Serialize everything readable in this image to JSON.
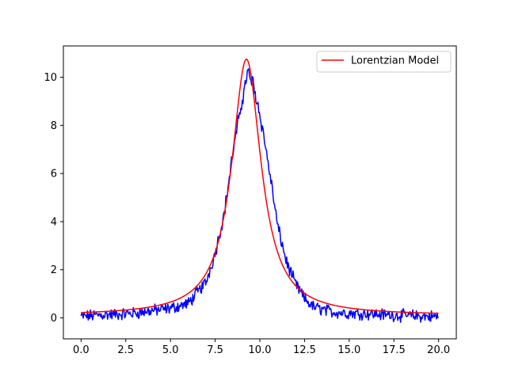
{
  "chart_data": {
    "type": "line",
    "title": "",
    "xlabel": "",
    "ylabel": "",
    "xlim": [
      -0.99,
      20.99
    ],
    "ylim": [
      -0.87,
      11.3
    ],
    "xticks": [
      0.0,
      2.5,
      5.0,
      7.5,
      10.0,
      12.5,
      15.0,
      17.5,
      20.0
    ],
    "xtick_labels": [
      "0.0",
      "2.5",
      "5.0",
      "7.5",
      "10.0",
      "12.5",
      "15.0",
      "17.5",
      "20.0"
    ],
    "yticks": [
      0,
      2,
      4,
      6,
      8,
      10
    ],
    "ytick_labels": [
      "0",
      "2",
      "4",
      "6",
      "8",
      "10"
    ],
    "grid": false,
    "legend_position": "top-right",
    "series": [
      {
        "name": "",
        "color": "#0000ff",
        "x_range": [
          0,
          20
        ],
        "n_points": 500,
        "description": "noisy observed data",
        "x": [
          0,
          1,
          2,
          3,
          4,
          5,
          6,
          7,
          7.5,
          8,
          8.5,
          9,
          9.3,
          9.6,
          10,
          10.5,
          11,
          11.5,
          12,
          12.5,
          13,
          14,
          15,
          16,
          17,
          18,
          19,
          20
        ],
        "values": [
          0.05,
          0.12,
          0.15,
          0.2,
          0.3,
          0.4,
          0.6,
          1.5,
          2.7,
          4.3,
          6.9,
          9.0,
          10.2,
          9.8,
          8.5,
          6.3,
          3.8,
          2.3,
          1.4,
          0.8,
          0.45,
          0.25,
          0.2,
          0.18,
          0.13,
          0.1,
          0.07,
          0.05
        ]
      },
      {
        "name": "Lorentzian Model",
        "color": "#ff0000",
        "model": "lorentzian",
        "amplitude": 10.65,
        "center": 9.25,
        "gamma": 1.0,
        "offset": 0.1
      }
    ]
  },
  "legend": {
    "entries": [
      {
        "label": "Lorentzian Model",
        "color": "#ff0000"
      }
    ]
  }
}
